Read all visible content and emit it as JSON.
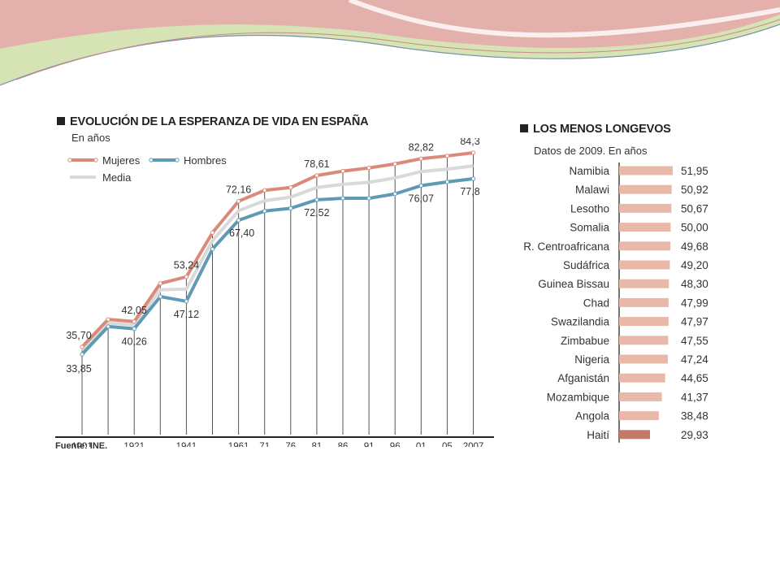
{
  "left_chart": {
    "title": "EVOLUCIÓN DE LA ESPERANZA DE VIDA EN ESPAÑA",
    "subtitle": "En años",
    "source": "Fuente: INE."
  },
  "right_chart": {
    "title": "LOS MENOS LONGEVOS",
    "subtitle": "Datos de 2009. En años"
  },
  "colors": {
    "mujeres": "#d98a7a",
    "hombres": "#5f9ab5",
    "media": "#d9d9d9",
    "bar": "#e8b9a8",
    "bar_highlight": "#c57a68",
    "decor_pink": "#e8a4a0",
    "decor_green": "#d4e2b2"
  },
  "chart_data": [
    {
      "type": "line",
      "title": "EVOLUCIÓN DE LA ESPERANZA DE VIDA EN ESPAÑA",
      "subtitle": "En años",
      "x": [
        "1901",
        "1911",
        "1921",
        "1931",
        "1941",
        "1951",
        "1961",
        "71",
        "76",
        "81",
        "86",
        "91",
        "96",
        "01",
        "05",
        "2007"
      ],
      "x_tick_labels": [
        "1901",
        "",
        "1921",
        "",
        "1941",
        "",
        "1961",
        "71",
        "76",
        "81",
        "86",
        "91",
        "96",
        "01",
        "05",
        "2007"
      ],
      "ylim": [
        25,
        90
      ],
      "series": [
        {
          "name": "Mujeres",
          "values": [
            35.7,
            42.6,
            42.05,
            51.6,
            53.24,
            64.3,
            72.16,
            74.9,
            75.6,
            78.61,
            79.7,
            80.5,
            81.5,
            82.82,
            83.5,
            84.3
          ]
        },
        {
          "name": "Media",
          "values": [
            34.8,
            41.7,
            41.2,
            50.0,
            50.2,
            62.3,
            69.8,
            72.3,
            73.2,
            75.6,
            76.4,
            76.9,
            78.0,
            79.6,
            80.2,
            81.0
          ]
        },
        {
          "name": "Hombres",
          "values": [
            33.85,
            40.8,
            40.26,
            48.3,
            47.12,
            60.2,
            67.4,
            69.7,
            70.4,
            72.52,
            72.9,
            72.9,
            74.0,
            76.07,
            77.0,
            77.8
          ]
        }
      ],
      "annotations": [
        {
          "x": "1901",
          "label": "35,70",
          "series": "Mujeres"
        },
        {
          "x": "1901",
          "label": "33,85",
          "series": "Hombres"
        },
        {
          "x": "1921",
          "label": "42,05",
          "series": "Mujeres"
        },
        {
          "x": "1921",
          "label": "40,26",
          "series": "Hombres"
        },
        {
          "x": "1941",
          "label": "53,24",
          "series": "Mujeres"
        },
        {
          "x": "1941",
          "label": "47,12",
          "series": "Hombres"
        },
        {
          "x": "1961",
          "label": "72,16",
          "series": "Mujeres"
        },
        {
          "x": "1961",
          "label": "67,40",
          "series": "Hombres"
        },
        {
          "x": "81",
          "label": "78,61",
          "series": "Mujeres"
        },
        {
          "x": "81",
          "label": "72,52",
          "series": "Hombres"
        },
        {
          "x": "01",
          "label": "82,82",
          "series": "Mujeres"
        },
        {
          "x": "01",
          "label": "76,07",
          "series": "Hombres"
        },
        {
          "x": "2007",
          "label": "84,3",
          "series": "Mujeres"
        },
        {
          "x": "2007",
          "label": "77,8",
          "series": "Hombres"
        }
      ],
      "legend": [
        "Mujeres",
        "Hombres",
        "Media"
      ],
      "legend_position": "top-left",
      "grid": false
    },
    {
      "type": "bar",
      "orientation": "horizontal",
      "title": "LOS MENOS LONGEVOS",
      "subtitle": "Datos de 2009. En años",
      "categories": [
        "Namibia",
        "Malawi",
        "Lesotho",
        "Somalia",
        "R. Centroafricana",
        "Sudáfrica",
        "Guinea Bissau",
        "Chad",
        "Swazilandia",
        "Zimbabue",
        "Nigeria",
        "Afganistán",
        "Mozambique",
        "Angola",
        "Haití"
      ],
      "values": [
        51.95,
        50.92,
        50.67,
        50.0,
        49.68,
        49.2,
        48.3,
        47.99,
        47.97,
        47.55,
        47.24,
        44.65,
        41.37,
        38.48,
        29.93
      ],
      "value_labels": [
        "51,95",
        "50,92",
        "50,67",
        "50,00",
        "49,68",
        "49,20",
        "48,30",
        "47,99",
        "47,97",
        "47,55",
        "47,24",
        "44,65",
        "41,37",
        "38,48",
        "29,93"
      ],
      "highlighted": [
        "Haití"
      ],
      "xlim": [
        0,
        52
      ]
    }
  ]
}
